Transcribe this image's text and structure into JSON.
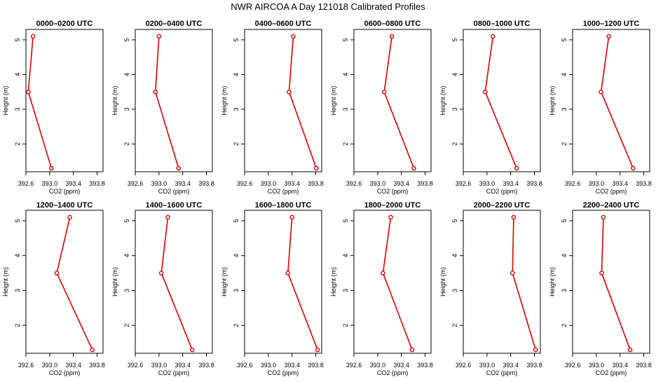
{
  "title": "NWR AIRCOA A  Day 121018  Calibrated Profiles",
  "colors": {
    "line": "#dd0000",
    "marker": "#dd0000",
    "axis": "#000000"
  },
  "chart_data": [
    {
      "type": "line",
      "title": "0000–0200 UTC",
      "xlabel": "CO2 (ppm)",
      "ylabel": "Height (m)",
      "xlim": [
        392.6,
        393.9
      ],
      "ylim": [
        1.2,
        5.3
      ],
      "xticks": [
        "392.6",
        "393.0",
        "393.4",
        "393.8"
      ],
      "yticks": [
        "2",
        "3",
        "4",
        "5"
      ],
      "x": [
        392.72,
        392.64,
        393.03
      ],
      "y": [
        5.1,
        3.5,
        1.3
      ]
    },
    {
      "type": "line",
      "title": "0200–0400 UTC",
      "xlabel": "CO2 (ppm)",
      "ylabel": "Height (m)",
      "xlim": [
        392.6,
        393.9
      ],
      "ylim": [
        1.2,
        5.3
      ],
      "xticks": [
        "392.6",
        "393.0",
        "393.4",
        "393.8"
      ],
      "yticks": [
        "2",
        "3",
        "4",
        "5"
      ],
      "x": [
        393.0,
        392.94,
        393.33
      ],
      "y": [
        5.1,
        3.5,
        1.3
      ]
    },
    {
      "type": "line",
      "title": "0400–0600 UTC",
      "xlabel": "CO2 (ppm)",
      "ylabel": "Height (m)",
      "xlim": [
        392.6,
        393.9
      ],
      "ylim": [
        1.2,
        5.3
      ],
      "xticks": [
        "392.6",
        "393.0",
        "393.4",
        "393.8"
      ],
      "yticks": [
        "2",
        "3",
        "4",
        "5"
      ],
      "x": [
        393.42,
        393.35,
        393.81
      ],
      "y": [
        5.1,
        3.5,
        1.3
      ]
    },
    {
      "type": "line",
      "title": "0600–0800 UTC",
      "xlabel": "CO2 (ppm)",
      "ylabel": "Height (m)",
      "xlim": [
        392.6,
        393.9
      ],
      "ylim": [
        1.2,
        5.3
      ],
      "xticks": [
        "392.6",
        "393.0",
        "393.4",
        "393.8"
      ],
      "yticks": [
        "2",
        "3",
        "4",
        "5"
      ],
      "x": [
        393.24,
        393.11,
        393.61
      ],
      "y": [
        5.1,
        3.5,
        1.3
      ]
    },
    {
      "type": "line",
      "title": "0800–1000 UTC",
      "xlabel": "CO2 (ppm)",
      "ylabel": "Height (m)",
      "xlim": [
        392.6,
        393.9
      ],
      "ylim": [
        1.2,
        5.3
      ],
      "xticks": [
        "392.6",
        "393.0",
        "393.4",
        "393.8"
      ],
      "yticks": [
        "2",
        "3",
        "4",
        "5"
      ],
      "x": [
        393.1,
        392.97,
        393.5
      ],
      "y": [
        5.1,
        3.5,
        1.3
      ]
    },
    {
      "type": "line",
      "title": "1000–1200 UTC",
      "xlabel": "CO2 (ppm)",
      "ylabel": "Height (m)",
      "xlim": [
        392.6,
        393.9
      ],
      "ylim": [
        1.2,
        5.3
      ],
      "xticks": [
        "392.6",
        "393.0",
        "393.4",
        "393.8"
      ],
      "yticks": [
        "2",
        "3",
        "4",
        "5"
      ],
      "x": [
        393.21,
        393.08,
        393.62
      ],
      "y": [
        5.1,
        3.5,
        1.3
      ]
    },
    {
      "type": "line",
      "title": "1200–1400 UTC",
      "xlabel": "CO2 (ppm)",
      "ylabel": "Height (m)",
      "xlim": [
        392.6,
        393.9
      ],
      "ylim": [
        1.2,
        5.3
      ],
      "xticks": [
        "392.6",
        "393.0",
        "393.4",
        "393.8"
      ],
      "yticks": [
        "2",
        "3",
        "4",
        "5"
      ],
      "x": [
        393.34,
        393.12,
        393.72
      ],
      "y": [
        5.1,
        3.5,
        1.3
      ]
    },
    {
      "type": "line",
      "title": "1400–1600 UTC",
      "xlabel": "CO2 (ppm)",
      "ylabel": "Height (m)",
      "xlim": [
        392.6,
        393.9
      ],
      "ylim": [
        1.2,
        5.3
      ],
      "xticks": [
        "392.6",
        "393.0",
        "393.4",
        "393.8"
      ],
      "yticks": [
        "2",
        "3",
        "4",
        "5"
      ],
      "x": [
        393.15,
        393.04,
        393.56
      ],
      "y": [
        5.1,
        3.5,
        1.3
      ]
    },
    {
      "type": "line",
      "title": "1600–1800 UTC",
      "xlabel": "CO2 (ppm)",
      "ylabel": "Height (m)",
      "xlim": [
        392.6,
        393.9
      ],
      "ylim": [
        1.2,
        5.3
      ],
      "xticks": [
        "392.6",
        "393.0",
        "393.4",
        "393.8"
      ],
      "yticks": [
        "2",
        "3",
        "4",
        "5"
      ],
      "x": [
        393.4,
        393.33,
        393.83
      ],
      "y": [
        5.1,
        3.5,
        1.3
      ]
    },
    {
      "type": "line",
      "title": "1800–2000 UTC",
      "xlabel": "CO2 (ppm)",
      "ylabel": "Height (m)",
      "xlim": [
        392.6,
        393.9
      ],
      "ylim": [
        1.2,
        5.3
      ],
      "xticks": [
        "392.6",
        "393.0",
        "393.4",
        "393.8"
      ],
      "yticks": [
        "2",
        "3",
        "4",
        "5"
      ],
      "x": [
        393.22,
        393.09,
        393.58
      ],
      "y": [
        5.1,
        3.5,
        1.3
      ]
    },
    {
      "type": "line",
      "title": "2000–2200 UTC",
      "xlabel": "CO2 (ppm)",
      "ylabel": "Height (m)",
      "xlim": [
        392.6,
        393.9
      ],
      "ylim": [
        1.2,
        5.3
      ],
      "xticks": [
        "392.6",
        "393.0",
        "393.4",
        "393.8"
      ],
      "yticks": [
        "2",
        "3",
        "4",
        "5"
      ],
      "x": [
        393.45,
        393.43,
        393.82
      ],
      "y": [
        5.1,
        3.5,
        1.3
      ]
    },
    {
      "type": "line",
      "title": "2200–2400 UTC",
      "xlabel": "CO2 (ppm)",
      "ylabel": "Height (m)",
      "xlim": [
        392.6,
        393.9
      ],
      "ylim": [
        1.2,
        5.3
      ],
      "xticks": [
        "392.6",
        "393.0",
        "393.4",
        "393.8"
      ],
      "yticks": [
        "2",
        "3",
        "4",
        "5"
      ],
      "x": [
        393.12,
        393.09,
        393.57
      ],
      "y": [
        5.1,
        3.5,
        1.3
      ]
    }
  ]
}
